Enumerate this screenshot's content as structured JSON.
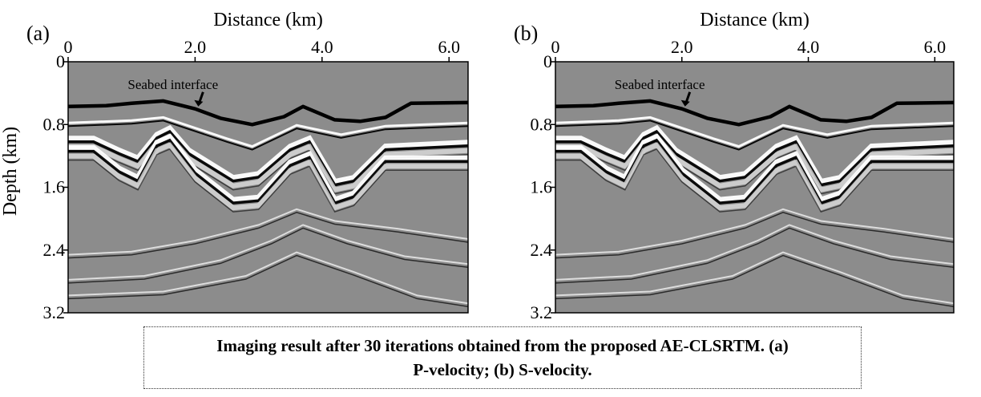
{
  "chart_data": [
    {
      "type": "heatmap",
      "panel_label": "(a)",
      "xlabel": "Distance (km)",
      "ylabel": "Depth (km)",
      "xlim": [
        0,
        6.3
      ],
      "ylim": [
        0,
        3.2
      ],
      "x_ticks": [
        0,
        2.0,
        4.0,
        6.0
      ],
      "x_tick_labels": [
        "0",
        "2.0",
        "4.0",
        "6.0"
      ],
      "y_ticks": [
        0,
        0.8,
        1.6,
        2.4,
        3.2
      ],
      "y_tick_labels": [
        "0",
        "0.8",
        "1.6",
        "2.4",
        "3.2"
      ],
      "annotation": "Seabed interface",
      "annotation_point": [
        2.05,
        0.55
      ],
      "seabed": [
        [
          0,
          0.57
        ],
        [
          0.6,
          0.56
        ],
        [
          1.0,
          0.53
        ],
        [
          1.5,
          0.5
        ],
        [
          2.0,
          0.6
        ],
        [
          2.4,
          0.72
        ],
        [
          2.9,
          0.8
        ],
        [
          3.4,
          0.7
        ],
        [
          3.7,
          0.57
        ],
        [
          4.2,
          0.74
        ],
        [
          4.6,
          0.76
        ],
        [
          5.0,
          0.71
        ],
        [
          5.4,
          0.53
        ],
        [
          6.3,
          0.52
        ]
      ],
      "reflectors": [
        [
          [
            0,
            0.8
          ],
          [
            1.0,
            0.77
          ],
          [
            1.5,
            0.73
          ],
          [
            2.5,
            1.0
          ],
          [
            2.9,
            1.1
          ],
          [
            3.6,
            0.83
          ],
          [
            4.3,
            0.95
          ],
          [
            5.0,
            0.84
          ],
          [
            6.3,
            0.8
          ]
        ],
        [
          [
            0,
            1.0
          ],
          [
            0.4,
            1.0
          ],
          [
            0.8,
            1.15
          ],
          [
            1.1,
            1.25
          ],
          [
            1.4,
            0.95
          ],
          [
            1.6,
            0.87
          ],
          [
            1.9,
            1.15
          ],
          [
            2.6,
            1.5
          ],
          [
            3.0,
            1.45
          ],
          [
            3.5,
            1.1
          ],
          [
            3.8,
            1.0
          ],
          [
            4.2,
            1.55
          ],
          [
            4.5,
            1.5
          ],
          [
            5.0,
            1.1
          ],
          [
            6.3,
            1.05
          ]
        ],
        [
          [
            0,
            1.12
          ],
          [
            0.4,
            1.12
          ],
          [
            0.8,
            1.38
          ],
          [
            1.1,
            1.5
          ],
          [
            1.4,
            1.05
          ],
          [
            1.6,
            0.98
          ],
          [
            2.0,
            1.4
          ],
          [
            2.6,
            1.78
          ],
          [
            3.0,
            1.75
          ],
          [
            3.5,
            1.3
          ],
          [
            3.8,
            1.2
          ],
          [
            4.2,
            1.78
          ],
          [
            4.5,
            1.7
          ],
          [
            5.0,
            1.25
          ],
          [
            6.3,
            1.25
          ]
        ],
        [
          [
            0,
            2.48
          ],
          [
            1.0,
            2.44
          ],
          [
            2.0,
            2.3
          ],
          [
            3.0,
            2.1
          ],
          [
            3.6,
            1.9
          ],
          [
            4.2,
            2.05
          ],
          [
            5.2,
            2.15
          ],
          [
            6.3,
            2.28
          ]
        ],
        [
          [
            0,
            2.8
          ],
          [
            1.2,
            2.75
          ],
          [
            2.4,
            2.55
          ],
          [
            3.2,
            2.3
          ],
          [
            3.7,
            2.1
          ],
          [
            4.4,
            2.3
          ],
          [
            5.3,
            2.5
          ],
          [
            6.3,
            2.6
          ]
        ],
        [
          [
            0,
            3.0
          ],
          [
            1.5,
            2.95
          ],
          [
            2.8,
            2.75
          ],
          [
            3.6,
            2.45
          ],
          [
            4.5,
            2.7
          ],
          [
            5.5,
            3.0
          ],
          [
            6.3,
            3.1
          ]
        ]
      ],
      "mode": "P"
    },
    {
      "type": "heatmap",
      "panel_label": "(b)",
      "xlabel": "Distance (km)",
      "ylabel": "",
      "xlim": [
        0,
        6.3
      ],
      "ylim": [
        0,
        3.2
      ],
      "x_ticks": [
        0,
        2.0,
        4.0,
        6.0
      ],
      "x_tick_labels": [
        "0",
        "2.0",
        "4.0",
        "6.0"
      ],
      "y_ticks": [
        0,
        0.8,
        1.6,
        2.4,
        3.2
      ],
      "y_tick_labels": [
        "0",
        "0.8",
        "1.6",
        "2.4",
        "3.2"
      ],
      "annotation": "Seabed interface",
      "annotation_point": [
        2.05,
        0.55
      ],
      "seabed": [
        [
          0,
          0.57
        ],
        [
          0.6,
          0.56
        ],
        [
          1.0,
          0.53
        ],
        [
          1.5,
          0.5
        ],
        [
          2.0,
          0.6
        ],
        [
          2.4,
          0.72
        ],
        [
          2.9,
          0.8
        ],
        [
          3.4,
          0.7
        ],
        [
          3.7,
          0.57
        ],
        [
          4.2,
          0.74
        ],
        [
          4.6,
          0.76
        ],
        [
          5.0,
          0.71
        ],
        [
          5.4,
          0.53
        ],
        [
          6.3,
          0.52
        ]
      ],
      "reflectors": [
        [
          [
            0,
            0.8
          ],
          [
            1.0,
            0.77
          ],
          [
            1.5,
            0.73
          ],
          [
            2.5,
            1.0
          ],
          [
            2.9,
            1.1
          ],
          [
            3.6,
            0.83
          ],
          [
            4.3,
            0.95
          ],
          [
            5.0,
            0.84
          ],
          [
            6.3,
            0.8
          ]
        ],
        [
          [
            0,
            1.0
          ],
          [
            0.4,
            1.0
          ],
          [
            0.8,
            1.15
          ],
          [
            1.1,
            1.25
          ],
          [
            1.4,
            0.95
          ],
          [
            1.6,
            0.87
          ],
          [
            1.9,
            1.15
          ],
          [
            2.6,
            1.5
          ],
          [
            3.0,
            1.45
          ],
          [
            3.5,
            1.1
          ],
          [
            3.8,
            1.0
          ],
          [
            4.2,
            1.55
          ],
          [
            4.5,
            1.5
          ],
          [
            5.0,
            1.1
          ],
          [
            6.3,
            1.05
          ]
        ],
        [
          [
            0,
            1.12
          ],
          [
            0.4,
            1.12
          ],
          [
            0.8,
            1.38
          ],
          [
            1.1,
            1.5
          ],
          [
            1.4,
            1.05
          ],
          [
            1.6,
            0.98
          ],
          [
            2.0,
            1.4
          ],
          [
            2.6,
            1.78
          ],
          [
            3.0,
            1.75
          ],
          [
            3.5,
            1.3
          ],
          [
            3.8,
            1.2
          ],
          [
            4.2,
            1.78
          ],
          [
            4.5,
            1.7
          ],
          [
            5.0,
            1.25
          ],
          [
            6.3,
            1.25
          ]
        ],
        [
          [
            0,
            2.48
          ],
          [
            1.0,
            2.44
          ],
          [
            2.0,
            2.3
          ],
          [
            3.0,
            2.1
          ],
          [
            3.6,
            1.9
          ],
          [
            4.2,
            2.05
          ],
          [
            5.2,
            2.15
          ],
          [
            6.3,
            2.28
          ]
        ],
        [
          [
            0,
            2.8
          ],
          [
            1.2,
            2.75
          ],
          [
            2.4,
            2.55
          ],
          [
            3.2,
            2.3
          ],
          [
            3.7,
            2.1
          ],
          [
            4.4,
            2.3
          ],
          [
            5.3,
            2.5
          ],
          [
            6.3,
            2.6
          ]
        ],
        [
          [
            0,
            3.0
          ],
          [
            1.5,
            2.95
          ],
          [
            2.8,
            2.75
          ],
          [
            3.6,
            2.45
          ],
          [
            4.5,
            2.7
          ],
          [
            5.5,
            3.0
          ],
          [
            6.3,
            3.1
          ]
        ]
      ],
      "mode": "S"
    }
  ],
  "caption": "Imaging result after 30 iterations obtained from the proposed AE-CLSRTM. (a) P-velocity; (b) S-velocity.",
  "colors": {
    "background": "#8c8c8c",
    "strong": "#000000",
    "bright": "#ffffff"
  }
}
